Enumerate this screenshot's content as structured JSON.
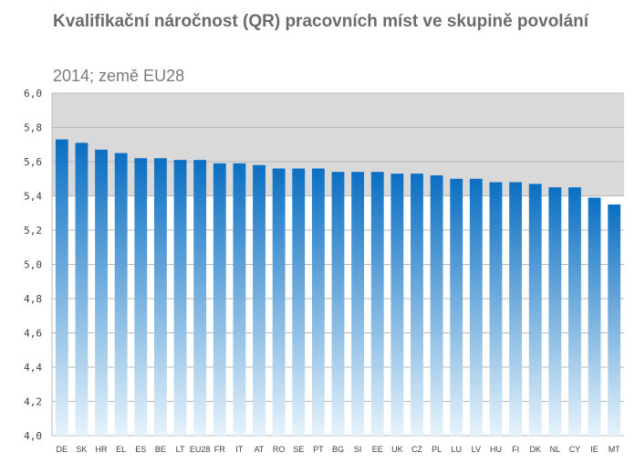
{
  "chart_data": {
    "type": "bar",
    "title": "Kvalifikační náročnost (QR)  pracovních míst ve skupině povolání",
    "subtitle": "2014; země EU28",
    "categories": [
      "DE",
      "SK",
      "HR",
      "EL",
      "ES",
      "BE",
      "LT",
      "EU28",
      "FR",
      "IT",
      "AT",
      "RO",
      "SE",
      "PT",
      "BG",
      "SI",
      "EE",
      "UK",
      "CZ",
      "PL",
      "LU",
      "LV",
      "HU",
      "FI",
      "DK",
      "NL",
      "CY",
      "IE",
      "MT"
    ],
    "values": [
      5.73,
      5.71,
      5.67,
      5.65,
      5.62,
      5.62,
      5.61,
      5.61,
      5.59,
      5.59,
      5.58,
      5.56,
      5.56,
      5.56,
      5.54,
      5.54,
      5.54,
      5.53,
      5.53,
      5.52,
      5.5,
      5.5,
      5.48,
      5.48,
      5.47,
      5.45,
      5.45,
      5.39,
      5.35
    ],
    "ylim": [
      4.0,
      6.0
    ],
    "yticks": [
      "6,0",
      "5,8",
      "5,6",
      "5,4",
      "5,2",
      "5,0",
      "4,8",
      "4,6",
      "4,4",
      "4,2",
      "4,0"
    ],
    "xlabel": "",
    "ylabel": "",
    "grid": true,
    "bands": [
      {
        "from": 5.4,
        "to": 6.0,
        "color": "#d9d9d9"
      },
      {
        "from": 4.0,
        "to": 5.4,
        "color": "#ffffff"
      }
    ],
    "bar_gradient": {
      "top": "#0b6fc2",
      "bottom": "#e6f3fb"
    },
    "gridline_color": "#b8b8b8"
  }
}
